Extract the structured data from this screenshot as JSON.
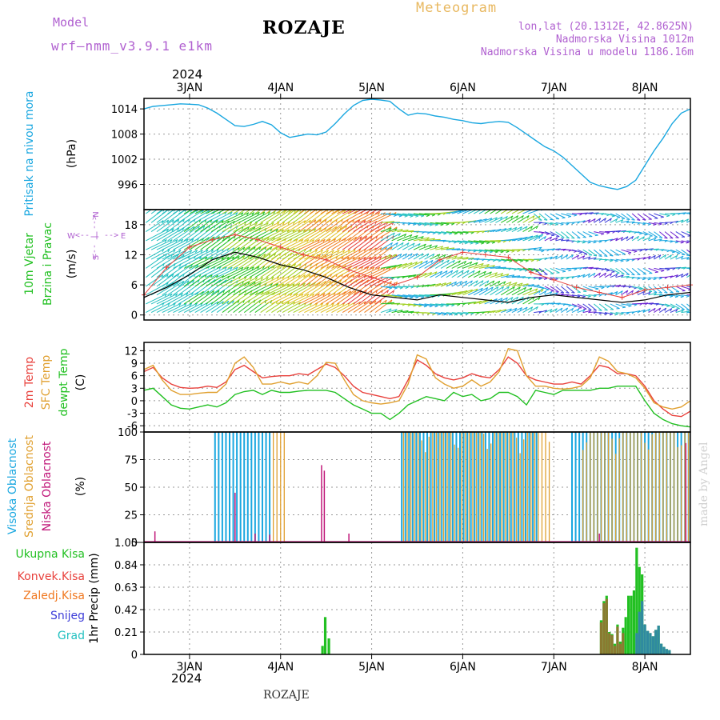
{
  "header": {
    "model_label": "Model",
    "model_name": "wrf–nmm_v3.9.1  e1km",
    "title": "ROZAJE",
    "meteogram_label": "Meteogram",
    "lonlat": "lon,lat (20.1312E, 42.8625N)",
    "altitude": "Nadmorska Visina 1012m",
    "model_altitude": "Nadmorska Visina u modelu 1186.16m",
    "year_top": "2024",
    "year_bottom": "2024",
    "footer": "ROZAJE",
    "watermark": "made by Angel"
  },
  "colors": {
    "pressure": "#1aa7e0",
    "temp2m": "#e8413c",
    "sfc": "#e0a030",
    "dew": "#22c022",
    "high_cloud": "#1aa7e0",
    "mid_cloud": "#e0a030",
    "low_cloud": "#c0187a",
    "ukupna": "#22c022",
    "konvek": "#e8413c",
    "zaledj": "#f07820",
    "snijeg": "#3c3cd8",
    "grad": "#22c0c0",
    "model": "#b060d0",
    "meteogram": "#e8b860",
    "wind_axis": "#b060d0"
  },
  "chart_data": [
    {
      "type": "line",
      "panel": "pressure",
      "ylabel": [
        "Pritisak na nivou mora",
        "(hPa)"
      ],
      "ylim": [
        990,
        1016.5
      ],
      "yticks": [
        996,
        1002,
        1008,
        1014
      ],
      "x_days": [
        2.5,
        2.6,
        2.7,
        2.8,
        2.9,
        3.0,
        3.1,
        3.2,
        3.3,
        3.4,
        3.5,
        3.6,
        3.7,
        3.8,
        3.9,
        4.0,
        4.1,
        4.2,
        4.3,
        4.4,
        4.5,
        4.6,
        4.7,
        4.8,
        4.9,
        5.0,
        5.1,
        5.2,
        5.3,
        5.4,
        5.5,
        5.6,
        5.7,
        5.8,
        5.9,
        6.0,
        6.1,
        6.2,
        6.3,
        6.4,
        6.5,
        6.6,
        6.7,
        6.8,
        6.9,
        7.0,
        7.1,
        7.2,
        7.3,
        7.4,
        7.5,
        7.6,
        7.7,
        7.8,
        7.9,
        8.0,
        8.1,
        8.2,
        8.3,
        8.4,
        8.5
      ],
      "series": [
        {
          "name": "Pritisak",
          "values": [
            1014.0,
            1014.6,
            1014.8,
            1015.0,
            1015.2,
            1015.1,
            1015.0,
            1014.2,
            1013.0,
            1011.5,
            1010.0,
            1009.8,
            1010.3,
            1011.0,
            1010.2,
            1008.3,
            1007.2,
            1007.6,
            1008.0,
            1007.8,
            1008.5,
            1010.5,
            1012.8,
            1014.8,
            1016.0,
            1016.3,
            1016.1,
            1015.8,
            1014.0,
            1012.5,
            1013.0,
            1012.8,
            1012.3,
            1012.0,
            1011.5,
            1011.2,
            1010.7,
            1010.5,
            1010.8,
            1011.0,
            1010.8,
            1009.5,
            1008.0,
            1006.5,
            1005.0,
            1004.0,
            1002.5,
            1000.5,
            998.5,
            996.5,
            995.7,
            995.2,
            994.8,
            995.5,
            997.0,
            1000.5,
            1004.0,
            1007.0,
            1010.5,
            1013.0,
            1014.0
          ]
        }
      ]
    },
    {
      "type": "line",
      "panel": "wind",
      "ylabel": [
        "10m Vjetar",
        "Brzina i Pravac",
        "(m/s)"
      ],
      "direction_legend": [
        "N",
        "S",
        "W",
        "E",
        "<-- | -->"
      ],
      "ylim": [
        -1,
        21
      ],
      "yticks": [
        0,
        6,
        12,
        18
      ],
      "x_days": [
        2.5,
        2.75,
        3.0,
        3.25,
        3.5,
        3.75,
        4.0,
        4.25,
        4.5,
        4.75,
        5.0,
        5.25,
        5.5,
        5.75,
        6.0,
        6.25,
        6.5,
        6.75,
        7.0,
        7.25,
        7.5,
        7.75,
        8.0,
        8.25,
        8.5
      ],
      "series": [
        {
          "name": "speed",
          "values": [
            3.5,
            5.5,
            8.0,
            11.0,
            12.5,
            11.5,
            10.0,
            9.0,
            7.5,
            5.5,
            4.0,
            3.5,
            3.0,
            4.0,
            3.5,
            3.0,
            2.5,
            3.5,
            4.0,
            3.5,
            3.0,
            2.5,
            3.0,
            4.0,
            4.5
          ]
        },
        {
          "name": "gust",
          "values": [
            4.0,
            9.5,
            13.5,
            15.0,
            16.0,
            15.0,
            13.5,
            12.0,
            11.0,
            9.0,
            7.5,
            6.0,
            7.5,
            11.0,
            12.5,
            12.0,
            11.5,
            8.5,
            7.0,
            5.5,
            4.5,
            3.5,
            5.0,
            5.5,
            6.0
          ]
        }
      ]
    },
    {
      "type": "line",
      "panel": "temperature",
      "ylabel": [
        "2m Temp",
        "SFC Temp",
        "dewpt Temp",
        "(C)"
      ],
      "ylim": [
        -7.5,
        14
      ],
      "yticks": [
        -6,
        -3,
        0,
        3,
        6,
        9,
        12
      ],
      "x_days": [
        2.5,
        2.6,
        2.7,
        2.8,
        2.9,
        3.0,
        3.1,
        3.2,
        3.3,
        3.4,
        3.5,
        3.6,
        3.7,
        3.8,
        3.9,
        4.0,
        4.1,
        4.2,
        4.3,
        4.4,
        4.5,
        4.6,
        4.7,
        4.8,
        4.9,
        5.0,
        5.1,
        5.2,
        5.3,
        5.4,
        5.5,
        5.6,
        5.7,
        5.8,
        5.9,
        6.0,
        6.1,
        6.2,
        6.3,
        6.4,
        6.5,
        6.6,
        6.7,
        6.8,
        6.9,
        7.0,
        7.1,
        7.2,
        7.3,
        7.4,
        7.5,
        7.6,
        7.7,
        7.8,
        7.9,
        8.0,
        8.1,
        8.2,
        8.3,
        8.4,
        8.5
      ],
      "series": [
        {
          "name": "2m Temp",
          "values": [
            7.0,
            8.0,
            5.5,
            4.0,
            3.2,
            3.0,
            3.1,
            3.5,
            3.2,
            4.5,
            7.5,
            8.5,
            7.0,
            5.5,
            5.8,
            6.0,
            6.0,
            6.5,
            6.2,
            7.5,
            8.8,
            8.0,
            6.0,
            3.5,
            2.0,
            1.5,
            1.0,
            0.5,
            1.0,
            5.0,
            9.8,
            8.5,
            6.5,
            5.5,
            5.0,
            5.5,
            6.5,
            5.8,
            5.5,
            7.5,
            10.5,
            9.0,
            6.0,
            5.0,
            4.5,
            4.0,
            4.0,
            4.5,
            4.0,
            6.0,
            8.5,
            8.0,
            6.5,
            6.5,
            6.0,
            3.5,
            0.0,
            -2.0,
            -3.5,
            -3.8,
            -2.5
          ]
        },
        {
          "name": "SFC Temp",
          "values": [
            7.5,
            8.5,
            5.0,
            2.5,
            1.5,
            1.5,
            1.8,
            2.0,
            2.0,
            4.0,
            9.0,
            10.5,
            8.0,
            4.0,
            4.0,
            4.5,
            4.0,
            4.5,
            4.0,
            6.0,
            9.2,
            9.0,
            5.0,
            1.5,
            0.0,
            -0.5,
            -0.8,
            -0.5,
            0.0,
            4.0,
            11.0,
            10.0,
            5.5,
            4.0,
            3.0,
            3.5,
            5.0,
            3.5,
            4.5,
            7.0,
            12.5,
            12.0,
            6.0,
            3.5,
            3.5,
            3.0,
            2.8,
            3.0,
            3.5,
            5.5,
            10.5,
            9.5,
            7.0,
            6.5,
            5.5,
            3.0,
            -0.5,
            -1.5,
            -2.0,
            -1.5,
            0.0
          ]
        },
        {
          "name": "dewpt Temp",
          "values": [
            2.5,
            3.0,
            1.0,
            -1.0,
            -1.8,
            -2.0,
            -1.5,
            -1.0,
            -1.5,
            -0.5,
            1.5,
            2.2,
            2.5,
            1.5,
            2.5,
            2.0,
            2.0,
            2.3,
            2.5,
            2.5,
            2.5,
            2.0,
            0.5,
            -1.0,
            -2.0,
            -3.0,
            -3.0,
            -4.5,
            -3.0,
            -1.0,
            0.0,
            1.0,
            0.5,
            0.0,
            2.0,
            1.0,
            1.5,
            0.0,
            0.5,
            2.0,
            2.0,
            1.0,
            -1.0,
            2.5,
            2.0,
            1.5,
            2.5,
            2.5,
            2.5,
            2.5,
            3.0,
            3.0,
            3.5,
            3.5,
            3.5,
            0.0,
            -3.0,
            -4.5,
            -5.5,
            -6.0,
            -6.3
          ]
        }
      ]
    },
    {
      "type": "bar",
      "panel": "clouds",
      "ylabel": [
        "Visoka Oblacnost",
        "Srednja Oblacnost",
        "Niska Oblacnost",
        "(%)"
      ],
      "ylim": [
        0,
        100
      ],
      "yticks": [
        0,
        25,
        50,
        75,
        100
      ],
      "high_intervals": [
        [
          3.28,
          3.92
        ],
        [
          5.33,
          6.85
        ],
        [
          7.2,
          8.5
        ]
      ],
      "mid_intervals": [
        [
          3.9,
          4.05
        ],
        [
          5.33,
          6.98
        ],
        [
          7.3,
          8.5
        ]
      ],
      "low_spikes": [
        [
          2.62,
          10
        ],
        [
          3.5,
          45
        ],
        [
          3.72,
          8
        ],
        [
          3.88,
          7
        ],
        [
          4.45,
          70
        ],
        [
          4.48,
          65
        ],
        [
          4.75,
          8
        ],
        [
          7.5,
          8
        ],
        [
          8.45,
          90
        ]
      ]
    },
    {
      "type": "bar",
      "panel": "precip",
      "ylabel": [
        "1hr Precip (mm)"
      ],
      "legend": [
        "Ukupna  Kisa",
        "Konvek.Kisa",
        "Zaledj.Kisa",
        "Snijeg",
        "Grad"
      ],
      "ylim": [
        0,
        1.05
      ],
      "yticks": [
        0,
        0.21,
        0.42,
        0.63,
        0.84,
        1.05
      ],
      "series": [
        {
          "name": "Ukupna  Kisa",
          "x_days": [
            4.46,
            4.49,
            4.53,
            7.52,
            7.55,
            7.58,
            7.61,
            7.64,
            7.67,
            7.7,
            7.73,
            7.76,
            7.79,
            7.82,
            7.85,
            7.88,
            7.91,
            7.94,
            7.97,
            8.0,
            8.03,
            8.06,
            8.09,
            8.12,
            8.15,
            8.18,
            8.21,
            8.24,
            8.27
          ],
          "values": [
            0.08,
            0.35,
            0.15,
            0.32,
            0.5,
            0.55,
            0.21,
            0.19,
            0.1,
            0.28,
            0.12,
            0.25,
            0.35,
            0.55,
            0.55,
            0.6,
            1.0,
            0.82,
            0.75,
            0.28,
            0.22,
            0.2,
            0.17,
            0.23,
            0.27,
            0.1,
            0.07,
            0.05,
            0.04
          ]
        },
        {
          "name": "Zaledj.Kisa",
          "x_days": [
            7.52,
            7.55,
            7.58,
            7.61,
            7.64,
            7.67,
            7.7,
            7.73,
            7.76
          ],
          "values": [
            0.3,
            0.48,
            0.52,
            0.2,
            0.18,
            0.08,
            0.26,
            0.1,
            0.2
          ]
        },
        {
          "name": "Snijeg",
          "x_days": [
            7.91,
            7.94,
            7.97,
            8.0,
            8.03,
            8.06,
            8.09,
            8.12,
            8.15,
            8.18,
            8.21,
            8.24,
            8.27
          ],
          "values": [
            0.2,
            0.4,
            0.5,
            0.28,
            0.22,
            0.2,
            0.17,
            0.23,
            0.27,
            0.1,
            0.07,
            0.05,
            0.04
          ]
        }
      ]
    }
  ],
  "time_axis": {
    "xlim_days": [
      2.5,
      8.5
    ],
    "day_ticks": [
      3,
      4,
      5,
      6,
      7,
      8
    ],
    "day_labels": [
      "3JAN",
      "4JAN",
      "5JAN",
      "6JAN",
      "7JAN",
      "8JAN"
    ]
  }
}
